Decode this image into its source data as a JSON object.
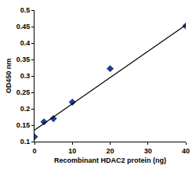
{
  "chart_data": {
    "type": "scatter",
    "x_label": "Recombinant HDAC2 protein (ng)",
    "y_label": "OD450 nm",
    "series": [
      {
        "type": "scatter",
        "marker": "diamond",
        "color": "#1f3f8f",
        "x": [
          0,
          2.5,
          5,
          10,
          20,
          40
        ],
        "values": [
          0.115,
          0.16,
          0.17,
          0.22,
          0.322,
          0.452
        ]
      },
      {
        "type": "line",
        "line_style": "solid",
        "color": "#000000",
        "x": [
          0,
          40
        ],
        "values": [
          0.135,
          0.455
        ]
      }
    ],
    "xlim": [
      0,
      40
    ],
    "xticks": [
      0,
      10,
      20,
      30,
      40
    ],
    "ylim": [
      0.1,
      0.5
    ],
    "yticks": [
      0.1,
      0.15,
      0.2,
      0.25,
      0.3,
      0.35,
      0.4,
      0.45,
      0.5
    ],
    "grid": false
  }
}
